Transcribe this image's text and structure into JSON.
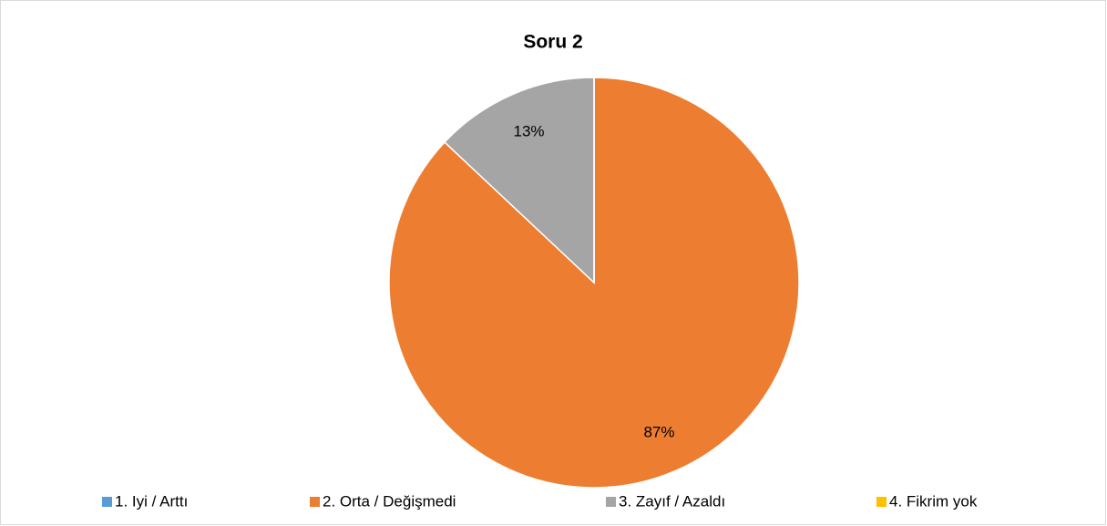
{
  "chart_data": {
    "type": "pie",
    "title": "Soru 2",
    "categories": [
      "1. Iyi / Arttı",
      "2. Orta / Değişmedi",
      "3. Zayıf / Azaldı",
      "4. Fikrim yok"
    ],
    "values": [
      0,
      87,
      13,
      0
    ],
    "value_labels": [
      null,
      "87%",
      "13%",
      null
    ],
    "colors": [
      "#5b9bd5",
      "#ed7d31",
      "#a5a5a5",
      "#ffc000"
    ],
    "legend": "bottom"
  }
}
